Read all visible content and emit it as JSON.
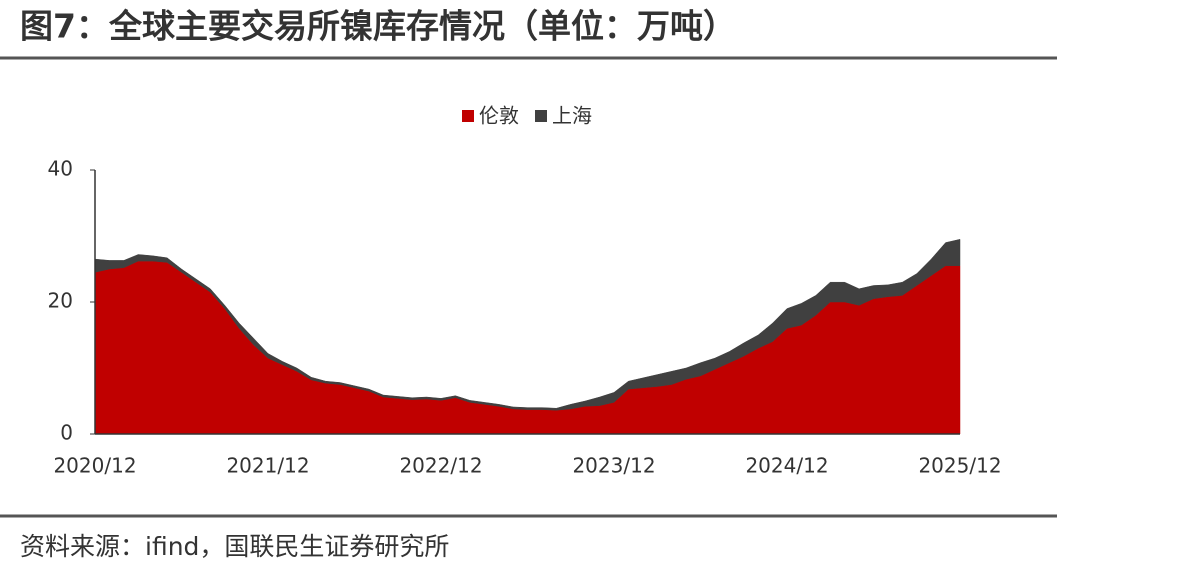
{
  "title": "图7：全球主要交易所镍库存情况（单位：万吨）",
  "source": "资料来源：ifind，国联民生证券研究所",
  "chart_data": {
    "type": "stacked-area",
    "legend": "top",
    "categories": [
      "2020/12",
      null,
      null,
      null,
      null,
      null,
      null,
      null,
      null,
      null,
      null,
      null,
      "2021/12",
      null,
      null,
      null,
      null,
      null,
      null,
      null,
      null,
      null,
      null,
      null,
      "2022/12",
      null,
      null,
      null,
      null,
      null,
      null,
      null,
      null,
      null,
      null,
      null,
      "2023/12",
      null,
      null,
      null,
      null,
      null,
      null,
      null,
      null,
      null,
      null,
      null,
      "2024/12",
      null,
      null,
      null,
      null,
      null,
      null,
      null,
      null,
      null,
      null,
      null,
      "2025/12"
    ],
    "ylim": [
      0,
      40
    ],
    "yticks": [
      0,
      20,
      40
    ],
    "series": [
      {
        "name": "伦敦",
        "color": "#c00000",
        "values": [
          24.5,
          25,
          25.2,
          26.2,
          26.2,
          26,
          24.5,
          23,
          21.5,
          19,
          16,
          13.5,
          11.5,
          10.5,
          9.5,
          8.2,
          7.7,
          7.5,
          7,
          6.5,
          5.6,
          5.4,
          5.2,
          5.3,
          5.1,
          5.5,
          4.8,
          4.5,
          4.2,
          3.8,
          3.7,
          3.7,
          3.6,
          3.8,
          4.2,
          4.3,
          4.8,
          6.8,
          7,
          7.2,
          7.5,
          8.3,
          8.8,
          9.8,
          10.8,
          11.8,
          13,
          14,
          16,
          16.5,
          18,
          20,
          20,
          19.5,
          20.5,
          20.8,
          21,
          22.5,
          24,
          25.5,
          25.5
        ]
      },
      {
        "name": "上海",
        "color": "#404040",
        "values": [
          2,
          1.3,
          1.1,
          1,
          0.8,
          0.7,
          0.5,
          0.5,
          0.5,
          0.5,
          0.8,
          1,
          0.7,
          0.5,
          0.5,
          0.4,
          0.3,
          0.3,
          0.3,
          0.3,
          0.3,
          0.3,
          0.3,
          0.3,
          0.3,
          0.3,
          0.3,
          0.3,
          0.3,
          0.3,
          0.3,
          0.3,
          0.3,
          0.7,
          0.8,
          1.3,
          1.5,
          1.2,
          1.5,
          1.8,
          2,
          1.7,
          2,
          1.7,
          1.7,
          2,
          2,
          2.8,
          3,
          3.3,
          3,
          3,
          3,
          2.5,
          2,
          1.8,
          2,
          1.8,
          2.5,
          3.5,
          4
        ]
      }
    ]
  }
}
